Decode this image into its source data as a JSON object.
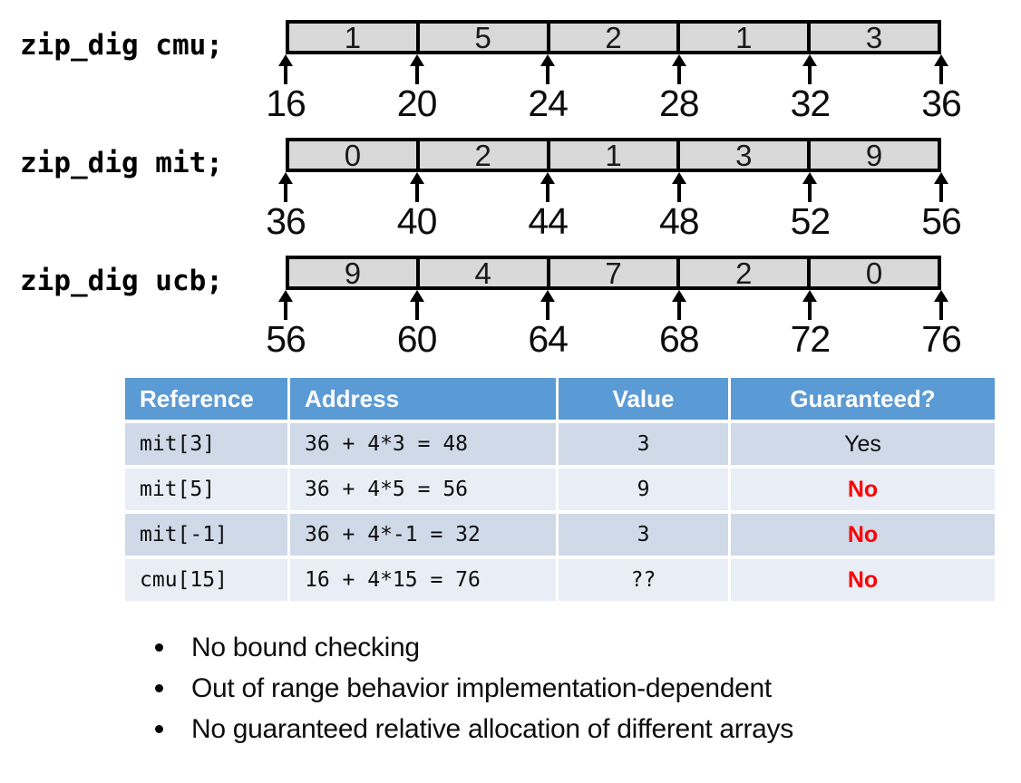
{
  "arrays": [
    {
      "name": "cmu",
      "label": "zip_dig cmu;",
      "values": [
        "1",
        "5",
        "2",
        "1",
        "3"
      ],
      "addresses": [
        "16",
        "20",
        "24",
        "28",
        "32",
        "36"
      ]
    },
    {
      "name": "mit",
      "label": "zip_dig mit;",
      "values": [
        "0",
        "2",
        "1",
        "3",
        "9"
      ],
      "addresses": [
        "36",
        "40",
        "44",
        "48",
        "52",
        "56"
      ]
    },
    {
      "name": "ucb",
      "label": "zip_dig ucb;",
      "values": [
        "9",
        "4",
        "7",
        "2",
        "0"
      ],
      "addresses": [
        "56",
        "60",
        "64",
        "68",
        "72",
        "76"
      ]
    }
  ],
  "table": {
    "headers": [
      "Reference",
      "Address",
      "Value",
      "Guaranteed?"
    ],
    "rows": [
      {
        "reference": "mit[3]",
        "address": "36 + 4*3 = 48",
        "value": "3",
        "guaranteed": "Yes",
        "guaranteed_color": "#0d0d0d"
      },
      {
        "reference": "mit[5]",
        "address": "36 + 4*5 = 56",
        "value": "9",
        "guaranteed": "No",
        "guaranteed_color": "#ff0000"
      },
      {
        "reference": "mit[-1]",
        "address": "36 + 4*-1 = 32",
        "value": "3",
        "guaranteed": "No",
        "guaranteed_color": "#ff0000"
      },
      {
        "reference": "cmu[15]",
        "address": "16 + 4*15 = 76",
        "value": "??",
        "guaranteed": "No",
        "guaranteed_color": "#ff0000"
      }
    ]
  },
  "bullets": [
    "No bound checking",
    "Out of range behavior implementation-dependent",
    "No guaranteed relative allocation of different arrays"
  ],
  "colors": {
    "header_bg": "#5b9bd5",
    "row_dark": "#cfd9e8",
    "row_light": "#e9edf5",
    "box_fill": "#d9d9d9",
    "no_red": "#ff0000"
  }
}
